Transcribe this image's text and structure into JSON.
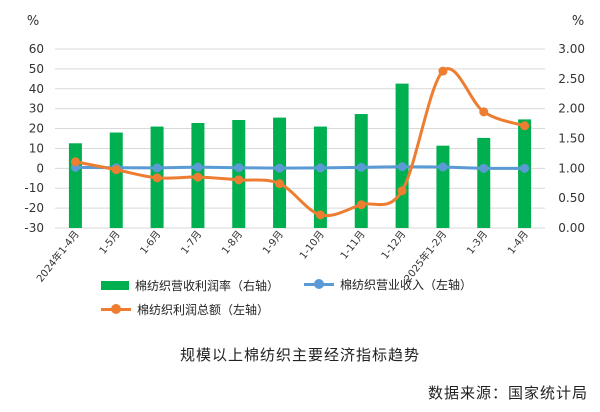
{
  "caption": "规模以上棉纺织主要经济指标趋势",
  "source": "数据来源：国家统计局",
  "colors": {
    "bar": "#00b050",
    "revenue_line": "#5b9bd5",
    "profit_line": "#ed7d31"
  },
  "chart_data": {
    "type": "bar",
    "categories": [
      "2024年1-4月",
      "1-5月",
      "1-6月",
      "1-7月",
      "1-8月",
      "1-9月",
      "1-10月",
      "1-11月",
      "1-12月",
      "2025年1-2月",
      "1-3月",
      "1-4月"
    ],
    "left_axis": {
      "unit": "%",
      "ylim": [
        -30,
        60
      ],
      "ticks": [
        60,
        50,
        40,
        30,
        20,
        10,
        0,
        -10,
        -20,
        -30
      ]
    },
    "right_axis": {
      "unit": "%",
      "ylim": [
        0,
        3
      ],
      "ticks": [
        "3.00",
        "2.50",
        "2.00",
        "1.50",
        "1.00",
        "0.50",
        "0.00"
      ]
    },
    "series": [
      {
        "name": "棉纺织营收利润率（右轴）",
        "kind": "bar",
        "axis": "right",
        "values": [
          1.42,
          1.6,
          1.7,
          1.76,
          1.81,
          1.85,
          1.7,
          1.91,
          2.42,
          1.38,
          1.51,
          1.82
        ]
      },
      {
        "name": "棉纺织营业收入（左轴）",
        "kind": "line",
        "axis": "left",
        "values": [
          0.5,
          0.3,
          0.2,
          0.6,
          0.3,
          0.1,
          0.2,
          0.5,
          0.8,
          0.7,
          0.0,
          0.0
        ]
      },
      {
        "name": "棉纺织利润总额（左轴）",
        "kind": "line",
        "axis": "left",
        "values": [
          3.3,
          -0.7,
          -4.8,
          -4.4,
          -5.8,
          -7.7,
          -23.4,
          -18.3,
          -11.3,
          48.9,
          28.4,
          21.4
        ]
      }
    ]
  }
}
